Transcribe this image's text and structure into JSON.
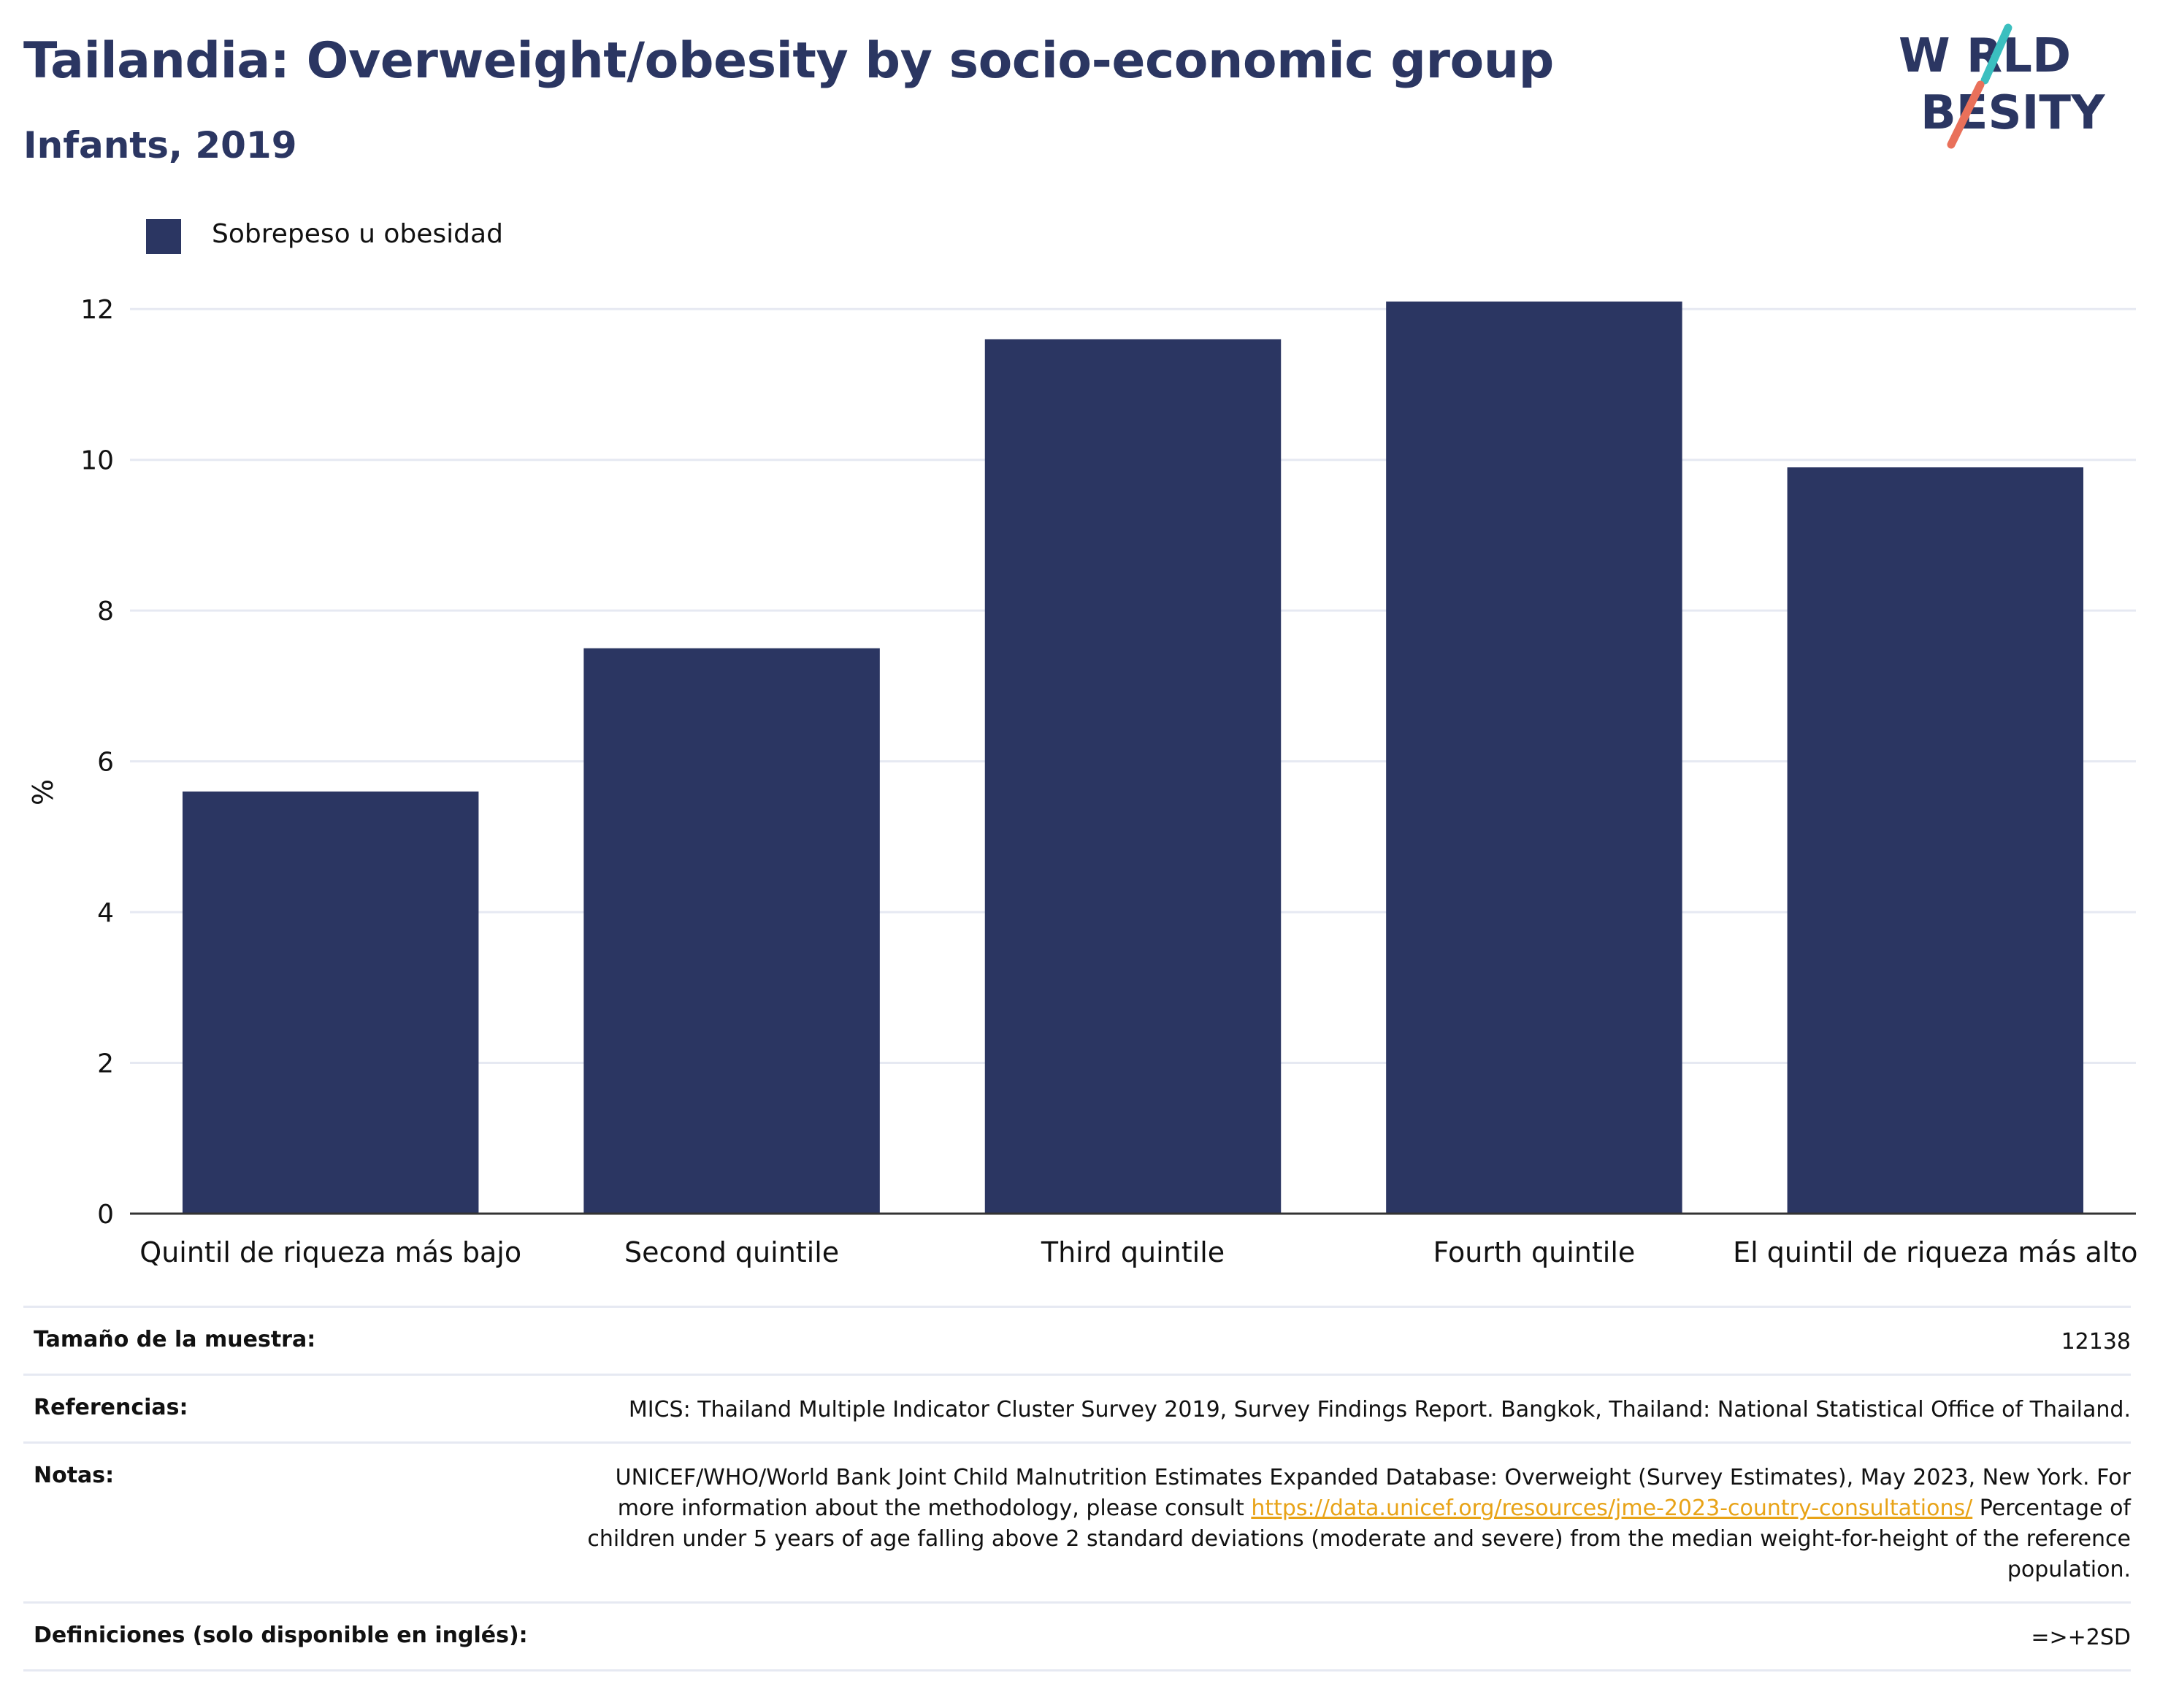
{
  "header": {
    "title": "Tailandia: Overweight/obesity by socio-economic group",
    "subtitle": "Infants, 2019"
  },
  "logo": {
    "line1": "W RLD",
    "line2": "BESITY",
    "colors": {
      "text": "#2b3662",
      "slash_top": "#3bbfbf",
      "slash_bottom": "#e9705a"
    }
  },
  "legend": {
    "label": "Sobrepeso u obesidad",
    "color": "#2b3662"
  },
  "chart_data": {
    "type": "bar",
    "categories": [
      "Quintil de riqueza más bajo",
      "Second quintile",
      "Third quintile",
      "Fourth quintile",
      "El quintil de riqueza más alto"
    ],
    "series": [
      {
        "name": "Sobrepeso u obesidad",
        "values": [
          5.6,
          7.5,
          11.6,
          12.1,
          9.9
        ],
        "color": "#2b3662"
      }
    ],
    "ylabel": "%",
    "xlabel": "",
    "ylim": [
      0,
      13
    ],
    "yticks": [
      0,
      2,
      4,
      6,
      8,
      10,
      12
    ],
    "grid": true,
    "legend_position": "top-left"
  },
  "meta": {
    "sample_label": "Tamaño de la muestra:",
    "sample_value": "12138",
    "references_label": "Referencias:",
    "references_value": "MICS: Thailand Multiple Indicator Cluster Survey 2019, Survey Findings Report. Bangkok, Thailand: National Statistical Office of Thailand.",
    "notes_label": "Notas:",
    "notes_text_1": "UNICEF/WHO/World Bank Joint Child Malnutrition Estimates Expanded Database: Overweight (Survey Estimates), May 2023, New York. For more information about the methodology, please consult",
    "notes_link": "https://data.unicef.org/resources/jme-2023-country-consultations/",
    "notes_text_2": "Percentage of children under 5 years of age falling above 2 standard deviations (moderate and severe) from the median weight-for-height of the reference population.",
    "definitions_label": "Definiciones (solo disponible en inglés):",
    "definitions_value": "=>+2SD"
  }
}
